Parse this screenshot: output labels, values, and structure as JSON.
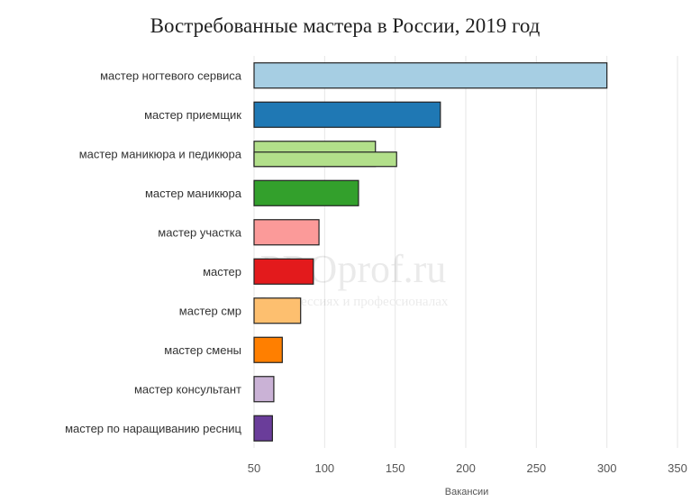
{
  "chart_data": {
    "type": "bar",
    "orientation": "horizontal",
    "title": "Востребованные мастера в России, 2019 год",
    "xlabel": "Вакансии",
    "ylabel": "",
    "xlim": [
      50,
      350
    ],
    "xticks": [
      50,
      100,
      150,
      200,
      250,
      300,
      350
    ],
    "grid": true,
    "categories": [
      "мастер ногтевого сервиса",
      "мастер приемщик",
      "мастер маникюра и педикюра",
      "мастер маникюра",
      "мастер участка",
      "мастер",
      "мастер смр",
      "мастер смены",
      "мастер консультант",
      "мастер по наращиванию ресниц"
    ],
    "values": [
      300,
      182,
      151,
      124,
      96,
      92,
      83,
      70,
      64,
      63
    ],
    "secondary_values": [
      null,
      null,
      136,
      null,
      null,
      null,
      null,
      null,
      null,
      null
    ],
    "colors": [
      "#a6cee3",
      "#1f78b4",
      "#b2df8a",
      "#33a02c",
      "#fb9a99",
      "#e31a1c",
      "#fdbf6f",
      "#ff7f00",
      "#cab2d6",
      "#6a3d9a"
    ]
  },
  "watermark": {
    "main": "PROprof.ru",
    "sub": "О профессиях и профессионалах"
  }
}
